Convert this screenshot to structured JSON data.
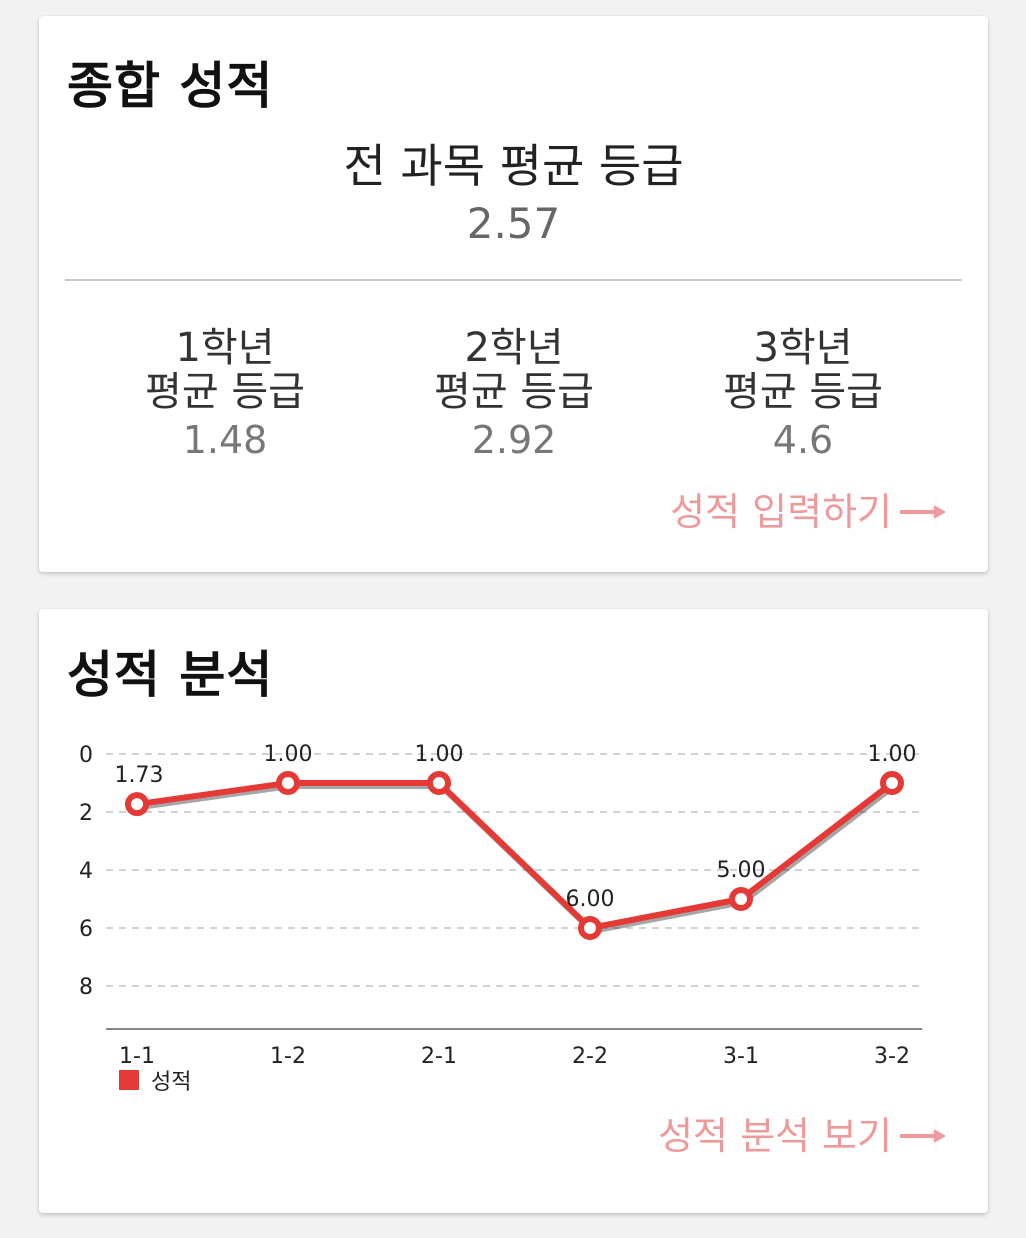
{
  "summary": {
    "title": "종합 성적",
    "overall_label": "전 과목 평균 등급",
    "overall_value": "2.57",
    "years": [
      {
        "name": "1학년",
        "label": "평균 등급",
        "value": "1.48"
      },
      {
        "name": "2학년",
        "label": "평균 등급",
        "value": "2.92"
      },
      {
        "name": "3학년",
        "label": "평균 등급",
        "value": "4.6"
      }
    ],
    "link_label": "성적 입력하기"
  },
  "analysis": {
    "title": "성적 분석",
    "link_label": "성적 분석 보기"
  },
  "colors": {
    "accent": "#e53935",
    "link": "#ee9a9a"
  },
  "icons": {
    "link_arrow": "right-arrow-icon"
  },
  "chart_data": {
    "type": "line",
    "categories": [
      "1-1",
      "1-2",
      "2-1",
      "2-2",
      "3-1",
      "3-2"
    ],
    "series": [
      {
        "name": "성적",
        "values": [
          1.73,
          1.0,
          1.0,
          6.0,
          5.0,
          1.0
        ]
      }
    ],
    "data_labels": [
      "1.73",
      "1.00",
      "1.00",
      "6.00",
      "5.00",
      "1.00"
    ],
    "y_ticks": [
      "0",
      "2",
      "4",
      "6",
      "8"
    ],
    "ylim": [
      0,
      9.5
    ],
    "y_inverted": true,
    "grid": true,
    "legend_position": "bottom-left"
  }
}
